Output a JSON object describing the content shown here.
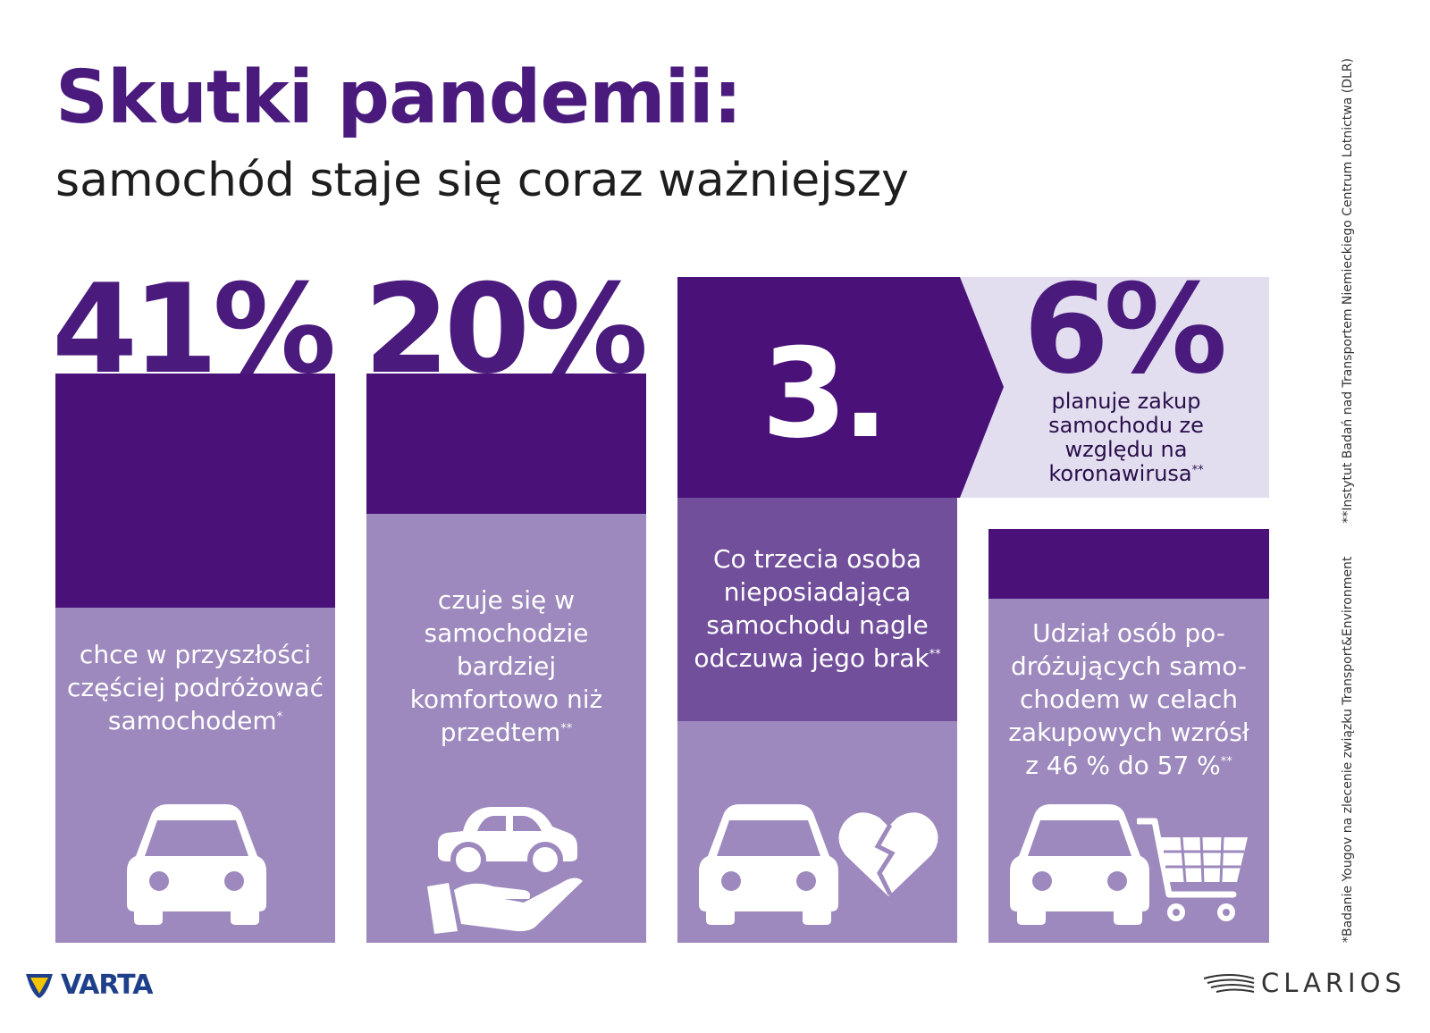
{
  "header": {
    "title": "Skutki pandemii:",
    "subtitle": "samochód staje się coraz ważniejszy"
  },
  "stats": [
    {
      "value": "41%",
      "caption": "chce w przyszłości częściej podróżować samochodem",
      "footnote_mark": "*",
      "icon": "car-icon"
    },
    {
      "value": "20%",
      "caption": "czuje się w samochodzie bardziej komfortowo niż przedtem",
      "footnote_mark": "**",
      "icon": "car-on-hand-icon"
    },
    {
      "value": "3.",
      "caption": "Co trzecia osoba nieposiadająca samochodu nagle odczuwa jego brak",
      "footnote_mark": "**",
      "icons": [
        "car-icon",
        "broken-heart-icon"
      ]
    },
    {
      "value": "6%",
      "caption": "planuje zakup samochodu ze względu na koronawirusa",
      "footnote_mark": "**"
    },
    {
      "caption": "Udział osób po-dróżujących samo-chodem w celach zakupowych wzrósł z 46 % do 57 %",
      "footnote_mark": "**",
      "icons": [
        "car-icon",
        "shopping-cart-icon"
      ]
    }
  ],
  "footnotes": {
    "note1": "*Badanie Yougov na zlecenie związku Transport&Environment",
    "note2": "**Instytut Badań nad Transportem Niemieckiego Centrum Lotnictwa (DLR)"
  },
  "logos": {
    "left": "VARTA",
    "right": "CLARIOS"
  },
  "colors": {
    "dark_purple": "#4a1179",
    "mid_purple": "#714f9b",
    "light_purple": "#9d89bd",
    "pale_lavender": "#e2def0",
    "title_purple": "#4a1b7d"
  }
}
